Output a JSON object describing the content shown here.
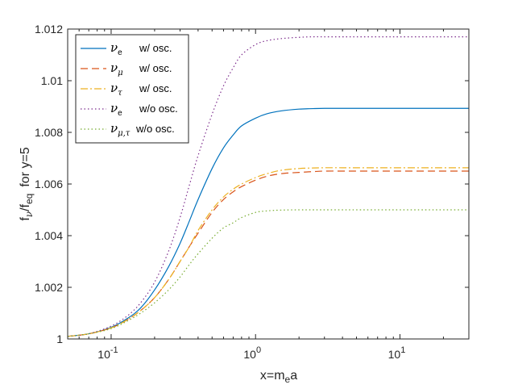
{
  "chart_data": {
    "type": "line",
    "title": "",
    "xlabel": {
      "base": "x=m",
      "sub": "e",
      "tail": "a"
    },
    "ylabel": {
      "pre": "f",
      "sub1": "ν",
      "mid": "/f",
      "sub2": "eq",
      "tail": "for y=5"
    },
    "xscale": "log",
    "xlim": [
      0.05,
      30
    ],
    "ylim": [
      1.0,
      1.012
    ],
    "grid": false,
    "legend_position": "top-left",
    "x_ticks": [
      {
        "value": 0.1,
        "base": "10",
        "exp": "-1"
      },
      {
        "value": 1,
        "base": "10",
        "exp": "0"
      },
      {
        "value": 10,
        "base": "10",
        "exp": "1"
      }
    ],
    "y_ticks": [
      {
        "value": 1.0,
        "label": "1"
      },
      {
        "value": 1.002,
        "label": "1.002"
      },
      {
        "value": 1.004,
        "label": "1.004"
      },
      {
        "value": 1.006,
        "label": "1.006"
      },
      {
        "value": 1.008,
        "label": "1.008"
      },
      {
        "value": 1.01,
        "label": "1.01"
      },
      {
        "value": 1.012,
        "label": "1.012"
      }
    ],
    "x": [
      0.05,
      0.07,
      0.1,
      0.13,
      0.16,
      0.2,
      0.25,
      0.3,
      0.35,
      0.4,
      0.5,
      0.6,
      0.7,
      0.8,
      1.0,
      1.2,
      1.5,
      2.0,
      2.5,
      3.0,
      4.0,
      5.0,
      7.0,
      10.0,
      15.0,
      20.0,
      30.0
    ],
    "series": [
      {
        "name": "nu_e_osc",
        "legend": {
          "greek": "ν",
          "sub": "e",
          "text": "w/ osc."
        },
        "color": "#0072BD",
        "dash": "",
        "values": [
          1.0001,
          1.0002,
          1.00045,
          1.0008,
          1.0012,
          1.0019,
          1.0028,
          1.0037,
          1.0046,
          1.0054,
          1.0066,
          1.0074,
          1.0079,
          1.00825,
          1.00855,
          1.00872,
          1.00883,
          1.0089,
          1.00892,
          1.00893,
          1.00893,
          1.00893,
          1.00893,
          1.00893,
          1.00893,
          1.00893,
          1.00893
        ]
      },
      {
        "name": "nu_mu_osc",
        "legend": {
          "greek": "ν",
          "sub": "μ",
          "text": "w/ osc."
        },
        "color": "#D95319",
        "dash": "9,5",
        "values": [
          1.0001,
          1.0002,
          1.00043,
          1.00075,
          1.0011,
          1.0016,
          1.0023,
          1.003,
          1.0036,
          1.0041,
          1.0049,
          1.0054,
          1.0057,
          1.0059,
          1.00615,
          1.0063,
          1.0064,
          1.00645,
          1.00648,
          1.0065,
          1.0065,
          1.0065,
          1.0065,
          1.0065,
          1.0065,
          1.0065,
          1.0065
        ]
      },
      {
        "name": "nu_tau_osc",
        "legend": {
          "greek": "ν",
          "sub": "τ",
          "text": "w/ osc."
        },
        "color": "#EDB120",
        "dash": "9,3,2,3",
        "values": [
          1.0001,
          1.0002,
          1.00043,
          1.00075,
          1.0011,
          1.0016,
          1.0023,
          1.003,
          1.0036,
          1.0042,
          1.005,
          1.0055,
          1.0058,
          1.006,
          1.00625,
          1.0064,
          1.00653,
          1.0066,
          1.00662,
          1.00663,
          1.00663,
          1.00663,
          1.00663,
          1.00663,
          1.00663,
          1.00663,
          1.00663
        ]
      },
      {
        "name": "nu_e_noosc",
        "legend": {
          "greek": "ν",
          "sub": "e",
          "text": "w/o osc."
        },
        "color": "#7E2F8E",
        "dash": "1.5,3",
        "values": [
          1.0001,
          1.0002,
          1.0005,
          1.0009,
          1.0014,
          1.0022,
          1.0034,
          1.0047,
          1.006,
          1.0071,
          1.0087,
          1.0098,
          1.0105,
          1.011,
          1.0114,
          1.01155,
          1.01163,
          1.01168,
          1.0117,
          1.0117,
          1.0117,
          1.0117,
          1.0117,
          1.0117,
          1.0117,
          1.0117,
          1.0117
        ]
      },
      {
        "name": "nu_mutau_noosc",
        "legend": {
          "greek": "ν",
          "sub": "μ,τ",
          "text": "w/o osc."
        },
        "color": "#77AC30",
        "dash": "1.5,3",
        "values": [
          1.0001,
          1.0002,
          1.0004,
          1.0007,
          1.001,
          1.0014,
          1.0019,
          1.0024,
          1.0029,
          1.0033,
          1.0039,
          1.0043,
          1.0045,
          1.0047,
          1.0049,
          1.00496,
          1.00499,
          1.005,
          1.005,
          1.005,
          1.005,
          1.005,
          1.005,
          1.005,
          1.005,
          1.005,
          1.005
        ]
      }
    ]
  }
}
